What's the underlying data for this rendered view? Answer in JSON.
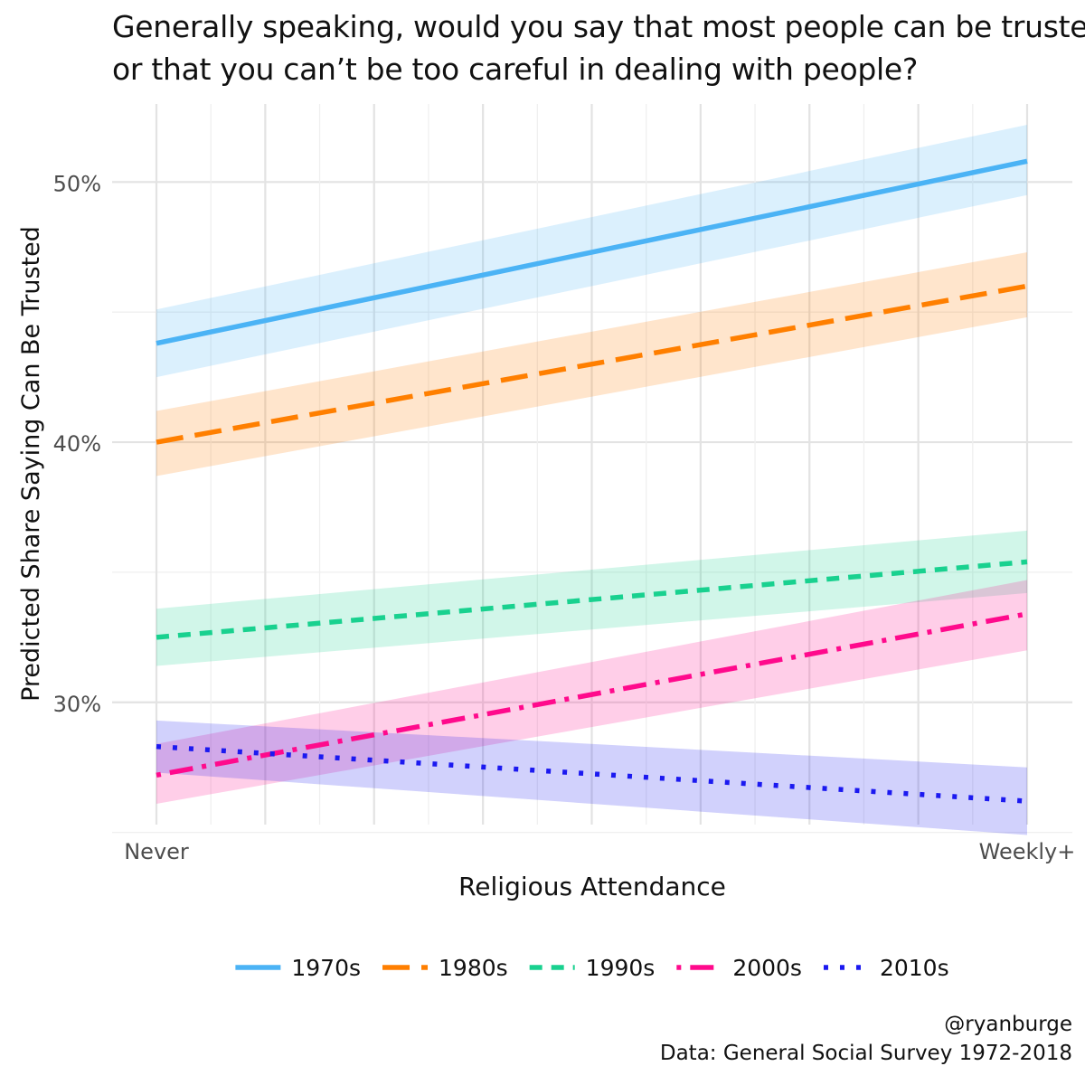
{
  "chart_data": {
    "type": "line",
    "title_lines": [
      "Generally speaking, would you say that most people can be trusted",
      "or that you can’t be too careful in dealing with people?"
    ],
    "xlabel": "Religious Attendance",
    "ylabel": "Predicted Share Saying Can Be Trusted",
    "x_tick_labels": [
      "Never",
      "Weekly+"
    ],
    "x_range": [
      0,
      8
    ],
    "ylim": [
      0.253,
      0.53
    ],
    "y_ticks": [
      {
        "value": 0.3,
        "label": "30%"
      },
      {
        "value": 0.4,
        "label": "40%"
      },
      {
        "value": 0.5,
        "label": "50%"
      }
    ],
    "y_minor_grid": [
      0.25,
      0.35,
      0.45
    ],
    "grid": true,
    "legend_position": "bottom",
    "series": [
      {
        "name": "1970s",
        "color": "#4bb3f5",
        "linetype": "solid",
        "start": 0.438,
        "end": 0.508,
        "ci_start": [
          0.425,
          0.451
        ],
        "ci_end": [
          0.495,
          0.522
        ]
      },
      {
        "name": "1980s",
        "color": "#ff7f00",
        "linetype": "longdash",
        "start": 0.4,
        "end": 0.46,
        "ci_start": [
          0.387,
          0.412
        ],
        "ci_end": [
          0.448,
          0.473
        ]
      },
      {
        "name": "1990s",
        "color": "#19d18f",
        "linetype": "dashed",
        "start": 0.325,
        "end": 0.354,
        "ci_start": [
          0.314,
          0.336
        ],
        "ci_end": [
          0.342,
          0.366
        ]
      },
      {
        "name": "2000s",
        "color": "#ff0a8c",
        "linetype": "dotdash",
        "start": 0.272,
        "end": 0.334,
        "ci_start": [
          0.261,
          0.284
        ],
        "ci_end": [
          0.32,
          0.347
        ]
      },
      {
        "name": "2010s",
        "color": "#1b19f0",
        "linetype": "dotted",
        "start": 0.283,
        "end": 0.262,
        "ci_start": [
          0.273,
          0.293
        ],
        "ci_end": [
          0.249,
          0.275
        ]
      }
    ]
  },
  "caption": {
    "handle": "@ryanburge",
    "source": "Data: General Social Survey 1972-2018"
  }
}
